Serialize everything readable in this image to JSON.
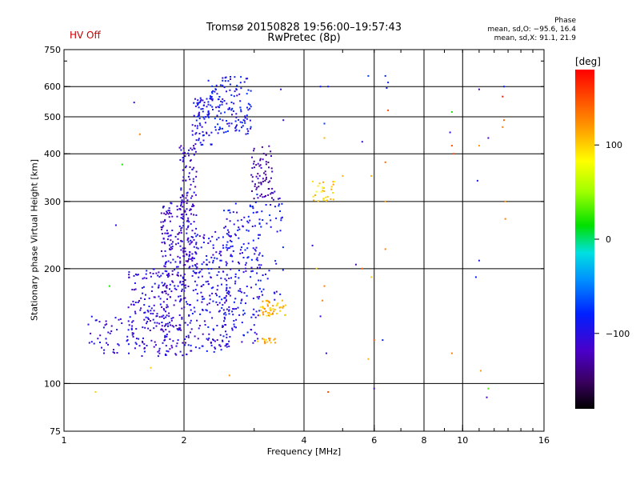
{
  "status": {
    "hv": "HV Off"
  },
  "header": {
    "title": "Tromsø 20150828 19:56:00–19:57:43",
    "subtitle": "RwPretec (8p)"
  },
  "phase_info": {
    "heading": "Phase",
    "o_mode": "mean, sd,O: −95.6, 16.4",
    "x_mode": "mean, sd,X:  91.1, 21.9"
  },
  "colorbar": {
    "unit": "[deg]",
    "ticks": [
      {
        "value": 100,
        "label": "100"
      },
      {
        "value": 0,
        "label": "0"
      },
      {
        "value": -100,
        "label": "−100"
      }
    ],
    "range": [
      -180,
      180
    ]
  },
  "chart_data": {
    "type": "scatter",
    "xlabel": "Frequency [MHz]",
    "ylabel": "Stationary phase Virtual Height [km]",
    "x_scale": "log",
    "y_scale": "log",
    "xlim": [
      1,
      16
    ],
    "ylim": [
      75,
      750
    ],
    "xticks": [
      {
        "v": 1,
        "label": "1"
      },
      {
        "v": 2,
        "label": "2"
      },
      {
        "v": 4,
        "label": "4"
      },
      {
        "v": 6,
        "label": "6"
      },
      {
        "v": 8,
        "label": "8"
      },
      {
        "v": 10,
        "label": "10"
      },
      {
        "v": 16,
        "label": "16"
      }
    ],
    "yticks": [
      {
        "v": 75,
        "label": "75"
      },
      {
        "v": 100,
        "label": "100"
      },
      {
        "v": 200,
        "label": "200"
      },
      {
        "v": 300,
        "label": "300"
      },
      {
        "v": 400,
        "label": "400"
      },
      {
        "v": 500,
        "label": "500"
      },
      {
        "v": 600,
        "label": "600"
      },
      {
        "v": 750,
        "label": "750"
      }
    ],
    "grid": true,
    "grid_x": [
      2,
      4,
      6,
      8,
      10
    ],
    "grid_y": [
      100,
      200,
      300,
      400,
      500,
      600
    ],
    "color_by": "phase [deg]",
    "trace_clusters": [
      {
        "x": [
          1.15,
          1.45
        ],
        "y": [
          120,
          150
        ],
        "phase": -105,
        "count": 40
      },
      {
        "x": [
          1.45,
          1.85
        ],
        "y": [
          118,
          200
        ],
        "phase": -105,
        "count": 170
      },
      {
        "x": [
          1.75,
          2.05
        ],
        "y": [
          118,
          300
        ],
        "phase": -110,
        "count": 230
      },
      {
        "x": [
          1.95,
          2.15
        ],
        "y": [
          200,
          420
        ],
        "phase": -110,
        "count": 120
      },
      {
        "x": [
          2.05,
          2.6
        ],
        "y": [
          120,
          250
        ],
        "phase": -100,
        "count": 220
      },
      {
        "x": [
          2.5,
          3.1
        ],
        "y": [
          125,
          300
        ],
        "phase": -95,
        "count": 190
      },
      {
        "x": [
          2.1,
          2.35
        ],
        "y": [
          420,
          560
        ],
        "phase": -95,
        "count": 70
      },
      {
        "x": [
          2.3,
          2.95
        ],
        "y": [
          450,
          640
        ],
        "phase": -90,
        "count": 140
      },
      {
        "x": [
          2.95,
          3.35
        ],
        "y": [
          300,
          420
        ],
        "phase": -125,
        "count": 70
      },
      {
        "x": [
          3.1,
          3.6
        ],
        "y": [
          150,
          165
        ],
        "phase": 110,
        "count": 50
      },
      {
        "x": [
          3.05,
          3.4
        ],
        "y": [
          127,
          133
        ],
        "phase": 110,
        "count": 15
      },
      {
        "x": [
          3.05,
          3.55
        ],
        "y": [
          165,
          320
        ],
        "phase": -90,
        "count": 50
      },
      {
        "x": [
          4.2,
          4.8
        ],
        "y": [
          300,
          340
        ],
        "phase": 100,
        "count": 30
      }
    ],
    "isolated_points": [
      {
        "x": 1.5,
        "y": 545,
        "phase": -110
      },
      {
        "x": 1.4,
        "y": 375,
        "phase": 20
      },
      {
        "x": 1.35,
        "y": 260,
        "phase": -100
      },
      {
        "x": 1.3,
        "y": 180,
        "phase": 20
      },
      {
        "x": 1.2,
        "y": 95,
        "phase": 100
      },
      {
        "x": 1.55,
        "y": 450,
        "phase": 130
      },
      {
        "x": 1.65,
        "y": 110,
        "phase": 100
      },
      {
        "x": 2.6,
        "y": 105,
        "phase": 120
      },
      {
        "x": 3.5,
        "y": 590,
        "phase": -100
      },
      {
        "x": 3.55,
        "y": 490,
        "phase": -100
      },
      {
        "x": 4.4,
        "y": 600,
        "phase": -90
      },
      {
        "x": 4.6,
        "y": 600,
        "phase": -90
      },
      {
        "x": 5.8,
        "y": 640,
        "phase": -70
      },
      {
        "x": 5.6,
        "y": 430,
        "phase": -110
      },
      {
        "x": 5.9,
        "y": 350,
        "phase": 110
      },
      {
        "x": 6.4,
        "y": 380,
        "phase": 140
      },
      {
        "x": 6.4,
        "y": 300,
        "phase": 120
      },
      {
        "x": 6.4,
        "y": 225,
        "phase": 130
      },
      {
        "x": 6.5,
        "y": 520,
        "phase": 150
      },
      {
        "x": 6.4,
        "y": 640,
        "phase": -80
      },
      {
        "x": 6.5,
        "y": 615,
        "phase": -80
      },
      {
        "x": 6.45,
        "y": 595,
        "phase": -80
      },
      {
        "x": 4.5,
        "y": 480,
        "phase": -70
      },
      {
        "x": 4.5,
        "y": 440,
        "phase": 110
      },
      {
        "x": 5.0,
        "y": 350,
        "phase": 110
      },
      {
        "x": 4.2,
        "y": 230,
        "phase": -110
      },
      {
        "x": 4.3,
        "y": 200,
        "phase": 100
      },
      {
        "x": 4.5,
        "y": 180,
        "phase": 130
      },
      {
        "x": 4.45,
        "y": 165,
        "phase": 130
      },
      {
        "x": 4.4,
        "y": 150,
        "phase": -110
      },
      {
        "x": 4.55,
        "y": 120,
        "phase": -100
      },
      {
        "x": 4.6,
        "y": 95,
        "phase": 150
      },
      {
        "x": 5.4,
        "y": 205,
        "phase": -130
      },
      {
        "x": 5.6,
        "y": 200,
        "phase": 140
      },
      {
        "x": 5.9,
        "y": 190,
        "phase": 100
      },
      {
        "x": 6.0,
        "y": 97,
        "phase": -120
      },
      {
        "x": 6.0,
        "y": 130,
        "phase": 150
      },
      {
        "x": 5.8,
        "y": 116,
        "phase": 110
      },
      {
        "x": 6.3,
        "y": 130,
        "phase": -80
      },
      {
        "x": 9.4,
        "y": 515,
        "phase": 20
      },
      {
        "x": 9.3,
        "y": 455,
        "phase": -110
      },
      {
        "x": 9.4,
        "y": 420,
        "phase": 150
      },
      {
        "x": 9.5,
        "y": 400,
        "phase": 150
      },
      {
        "x": 9.4,
        "y": 120,
        "phase": 130
      },
      {
        "x": 11.0,
        "y": 590,
        "phase": -130
      },
      {
        "x": 11.0,
        "y": 420,
        "phase": 120
      },
      {
        "x": 11.6,
        "y": 440,
        "phase": -120
      },
      {
        "x": 10.9,
        "y": 340,
        "phase": -90
      },
      {
        "x": 11.0,
        "y": 210,
        "phase": -90
      },
      {
        "x": 10.8,
        "y": 190,
        "phase": -80
      },
      {
        "x": 11.1,
        "y": 108,
        "phase": 120
      },
      {
        "x": 11.6,
        "y": 97,
        "phase": 30
      },
      {
        "x": 11.5,
        "y": 92,
        "phase": -120
      },
      {
        "x": 12.7,
        "y": 600,
        "phase": -80
      },
      {
        "x": 12.6,
        "y": 565,
        "phase": 170
      },
      {
        "x": 12.7,
        "y": 490,
        "phase": 140
      },
      {
        "x": 12.6,
        "y": 470,
        "phase": 130
      },
      {
        "x": 12.8,
        "y": 300,
        "phase": 120
      },
      {
        "x": 12.8,
        "y": 270,
        "phase": 130
      }
    ]
  }
}
